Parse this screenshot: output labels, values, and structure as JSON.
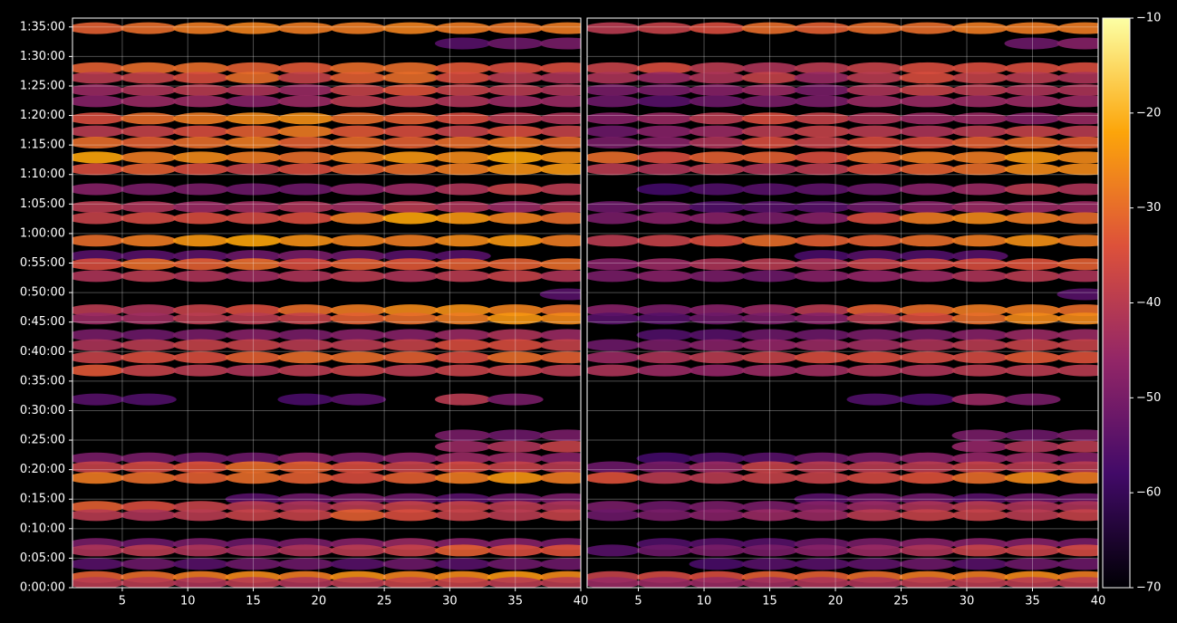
{
  "chart_data": {
    "type": "heatmap",
    "grid": true,
    "y": [
      94.8,
      92.2,
      88,
      86.4,
      84.3,
      82.4,
      79.5,
      77.3,
      75.4,
      72.9,
      70.9,
      67.5,
      64.5,
      62.6,
      58.8,
      56.2,
      54.8,
      52.8,
      49.7,
      47,
      45.6,
      42.8,
      41.1,
      39,
      36.8,
      31.9,
      25.8,
      23.9,
      21.9,
      20.4,
      18.6,
      15,
      13.7,
      12.3,
      7.4,
      6.3,
      4,
      1.8,
      0.8
    ],
    "ylim": [
      0,
      96.5
    ],
    "yticks": [
      {
        "value": 0,
        "label": "0:00:00"
      },
      {
        "value": 5,
        "label": "0:05:00"
      },
      {
        "value": 10,
        "label": "0:10:00"
      },
      {
        "value": 15,
        "label": "0:15:00"
      },
      {
        "value": 20,
        "label": "0:20:00"
      },
      {
        "value": 25,
        "label": "0:25:00"
      },
      {
        "value": 30,
        "label": "0:30:00"
      },
      {
        "value": 35,
        "label": "0:35:00"
      },
      {
        "value": 40,
        "label": "0:40:00"
      },
      {
        "value": 45,
        "label": "0:45:00"
      },
      {
        "value": 50,
        "label": "0:50:00"
      },
      {
        "value": 55,
        "label": "0:55:00"
      },
      {
        "value": 60,
        "label": "1:00:00"
      },
      {
        "value": 65,
        "label": "1:05:00"
      },
      {
        "value": 70,
        "label": "1:10:00"
      },
      {
        "value": 75,
        "label": "1:15:00"
      },
      {
        "value": 80,
        "label": "1:20:00"
      },
      {
        "value": 85,
        "label": "1:25:00"
      },
      {
        "value": 90,
        "label": "1:30:00"
      },
      {
        "value": 95,
        "label": "1:35:00"
      }
    ],
    "colorbar": {
      "lim": [
        -70,
        -10
      ],
      "colormap": [
        "#000004",
        "#420a68",
        "#932667",
        "#dd513a",
        "#fca50a",
        "#fcffa4"
      ],
      "ticks": [
        {
          "value": -70,
          "label": "−70"
        },
        {
          "value": -60,
          "label": "−60"
        },
        {
          "value": -50,
          "label": "−50"
        },
        {
          "value": -40,
          "label": "−40"
        },
        {
          "value": -30,
          "label": "−30"
        },
        {
          "value": -20,
          "label": "−20"
        },
        {
          "value": -10,
          "label": "−10"
        }
      ]
    },
    "panels": [
      {
        "x": [
          3,
          7,
          11,
          15,
          19,
          23,
          27,
          31,
          35,
          39
        ],
        "xlim": [
          1.2,
          40
        ],
        "xticks": [
          5,
          10,
          15,
          20,
          25,
          30,
          35,
          40
        ],
        "z": [
          [
            -32,
            -30,
            -28,
            -27,
            -28,
            -28,
            -27,
            -28,
            -29,
            -28
          ],
          [
            null,
            null,
            null,
            null,
            null,
            null,
            null,
            -55,
            -52,
            -50
          ],
          [
            -32,
            -30,
            -30,
            -32,
            -33,
            -30,
            -30,
            -33,
            -35,
            -35
          ],
          [
            -40,
            -38,
            -35,
            -30,
            -38,
            -32,
            -30,
            -35,
            -40,
            -42
          ],
          [
            -45,
            -42,
            -40,
            -42,
            -45,
            -38,
            -34,
            -38,
            -40,
            -42
          ],
          [
            -48,
            -45,
            -45,
            -48,
            -45,
            -40,
            -40,
            -42,
            -45,
            -45
          ],
          [
            -35,
            -30,
            -28,
            -26,
            -25,
            -30,
            -32,
            -35,
            -40,
            -42
          ],
          [
            -40,
            -38,
            -35,
            -32,
            -28,
            -33,
            -35,
            -38,
            -35,
            -38
          ],
          [
            -30,
            -32,
            -30,
            -28,
            -32,
            -30,
            -32,
            -30,
            -28,
            -30
          ],
          [
            -22,
            -28,
            -26,
            -28,
            -30,
            -27,
            -24,
            -26,
            -22,
            -25
          ],
          [
            -35,
            -32,
            -35,
            -38,
            -35,
            -32,
            -30,
            -28,
            -25,
            -24
          ],
          [
            -48,
            -50,
            -50,
            -52,
            -52,
            -48,
            -45,
            -42,
            -38,
            -40
          ],
          [
            -40,
            -42,
            -45,
            -44,
            -42,
            -44,
            -40,
            -42,
            -45,
            -42
          ],
          [
            -38,
            -36,
            -35,
            -36,
            -35,
            -28,
            -22,
            -24,
            -27,
            -30
          ],
          [
            -30,
            -28,
            -24,
            -22,
            -25,
            -27,
            -28,
            -26,
            -24,
            -28
          ],
          [
            -55,
            -55,
            -54,
            -52,
            -50,
            -52,
            -55,
            -55,
            null,
            null
          ],
          [
            -35,
            -30,
            -32,
            -30,
            -35,
            -32,
            -33,
            -32,
            -32,
            -30
          ],
          [
            -42,
            -40,
            -42,
            -44,
            -42,
            -40,
            -42,
            -40,
            -38,
            -42
          ],
          [
            null,
            null,
            null,
            null,
            null,
            null,
            null,
            null,
            null,
            -55
          ],
          [
            -40,
            -42,
            -38,
            -35,
            -30,
            -28,
            -26,
            -25,
            -27,
            -30
          ],
          [
            -45,
            -44,
            -40,
            -40,
            -38,
            -32,
            -30,
            -28,
            -24,
            -26
          ],
          [
            -50,
            -52,
            -50,
            -48,
            -50,
            -48,
            -48,
            -45,
            -42,
            -45
          ],
          [
            -42,
            -40,
            -38,
            -38,
            -40,
            -40,
            -38,
            -35,
            -35,
            -38
          ],
          [
            -38,
            -35,
            -35,
            -32,
            -30,
            -30,
            -32,
            -35,
            -30,
            -32
          ],
          [
            -33,
            -38,
            -40,
            -42,
            -40,
            -38,
            -40,
            -38,
            -38,
            -40
          ],
          [
            -55,
            -56,
            null,
            null,
            -57,
            -55,
            null,
            -40,
            -50,
            null
          ],
          [
            null,
            null,
            null,
            null,
            null,
            null,
            null,
            -50,
            -52,
            -50
          ],
          [
            null,
            null,
            null,
            null,
            null,
            null,
            null,
            -45,
            -42,
            -38
          ],
          [
            -50,
            -50,
            -52,
            -52,
            -48,
            -50,
            -48,
            -45,
            -45,
            -48
          ],
          [
            -38,
            -36,
            -34,
            -30,
            -32,
            -35,
            -38,
            -36,
            -38,
            -40
          ],
          [
            -28,
            -30,
            -32,
            -30,
            -32,
            -35,
            -32,
            -28,
            -24,
            -28
          ],
          [
            null,
            null,
            null,
            -55,
            -52,
            -50,
            -52,
            -55,
            -52,
            -50
          ],
          [
            -32,
            -35,
            -38,
            -40,
            -42,
            -40,
            -38,
            -38,
            -40,
            -42
          ],
          [
            -40,
            -42,
            -40,
            -38,
            -38,
            -32,
            -35,
            -38,
            -40,
            -38
          ],
          [
            -50,
            -52,
            -50,
            -52,
            -50,
            -48,
            -45,
            -48,
            -48,
            -50
          ],
          [
            -42,
            -40,
            -42,
            -44,
            -42,
            -40,
            -38,
            -32,
            -35,
            -34
          ],
          [
            -55,
            -52,
            -55,
            -52,
            -52,
            -55,
            -52,
            -55,
            -52,
            -52
          ],
          [
            -32,
            -30,
            -28,
            -26,
            -28,
            -25,
            -27,
            -26,
            -24,
            -26
          ],
          [
            -40,
            -40,
            -42,
            -40,
            -42,
            -40,
            -38,
            -38,
            -40,
            -40
          ]
        ]
      },
      {
        "x": [
          3,
          7,
          11,
          15,
          19,
          23,
          27,
          31,
          35,
          39
        ],
        "xlim": [
          1.1,
          40
        ],
        "xticks": [
          5,
          10,
          15,
          20,
          25,
          30,
          35,
          40
        ],
        "z": [
          [
            -40,
            -38,
            -35,
            -30,
            -32,
            -30,
            -30,
            -28,
            -28,
            -28
          ],
          [
            null,
            null,
            null,
            null,
            null,
            null,
            null,
            null,
            -52,
            -48
          ],
          [
            -38,
            -35,
            -40,
            -42,
            -40,
            -38,
            -35,
            -35,
            -35,
            -35
          ],
          [
            -42,
            -45,
            -42,
            -38,
            -45,
            -40,
            -35,
            -38,
            -40,
            -42
          ],
          [
            -50,
            -50,
            -48,
            -45,
            -50,
            -42,
            -38,
            -40,
            -42,
            -42
          ],
          [
            -52,
            -55,
            -52,
            -50,
            -50,
            -45,
            -45,
            -45,
            -45,
            -45
          ],
          [
            -48,
            -45,
            -40,
            -35,
            -38,
            -42,
            -45,
            -45,
            -48,
            -45
          ],
          [
            -52,
            -48,
            -45,
            -40,
            -38,
            -40,
            -42,
            -40,
            -38,
            -40
          ],
          [
            -50,
            -48,
            -42,
            -35,
            -38,
            -35,
            -35,
            -32,
            -30,
            -32
          ],
          [
            -30,
            -35,
            -32,
            -32,
            -35,
            -30,
            -28,
            -28,
            -24,
            -26
          ],
          [
            -40,
            -42,
            -40,
            -42,
            -40,
            -35,
            -32,
            -30,
            -26,
            -26
          ],
          [
            null,
            -58,
            -56,
            -55,
            -54,
            -52,
            -48,
            -45,
            -40,
            -42
          ],
          [
            -52,
            -52,
            -56,
            -55,
            -55,
            -52,
            -48,
            -45,
            -45,
            -45
          ],
          [
            -50,
            -48,
            -48,
            -50,
            -48,
            -35,
            -28,
            -26,
            -28,
            -30
          ],
          [
            -40,
            -38,
            -35,
            -30,
            -32,
            -32,
            -30,
            -28,
            -25,
            -28
          ],
          [
            null,
            null,
            null,
            null,
            -57,
            -55,
            -56,
            -55,
            null,
            null
          ],
          [
            -48,
            -45,
            -42,
            -40,
            -42,
            -38,
            -36,
            -35,
            -34,
            -32
          ],
          [
            -50,
            -48,
            -50,
            -52,
            -48,
            -46,
            -45,
            -42,
            -40,
            -42
          ],
          [
            null,
            null,
            null,
            null,
            null,
            null,
            null,
            null,
            null,
            -55
          ],
          [
            -48,
            -50,
            -48,
            -45,
            -40,
            -32,
            -30,
            -28,
            -28,
            -30
          ],
          [
            -55,
            -55,
            -52,
            -50,
            -48,
            -40,
            -35,
            -30,
            -26,
            -26
          ],
          [
            null,
            -56,
            -55,
            -52,
            -52,
            -50,
            -50,
            -48,
            -45,
            -45
          ],
          [
            -52,
            -50,
            -48,
            -46,
            -45,
            -44,
            -42,
            -40,
            -38,
            -38
          ],
          [
            -45,
            -42,
            -40,
            -38,
            -35,
            -35,
            -36,
            -36,
            -33,
            -34
          ],
          [
            -42,
            -45,
            -46,
            -45,
            -44,
            -42,
            -42,
            -40,
            -40,
            -40
          ],
          [
            null,
            null,
            null,
            null,
            null,
            -56,
            -57,
            -45,
            -50,
            null
          ],
          [
            null,
            null,
            null,
            null,
            null,
            null,
            null,
            -50,
            -52,
            -50
          ],
          [
            null,
            null,
            null,
            null,
            null,
            null,
            null,
            -46,
            -42,
            -40
          ],
          [
            null,
            -58,
            -56,
            -55,
            -52,
            -50,
            -48,
            -46,
            -45,
            -48
          ],
          [
            -52,
            -50,
            -45,
            -38,
            -40,
            -40,
            -40,
            -38,
            -40,
            -40
          ],
          [
            -34,
            -40,
            -40,
            -38,
            -38,
            -36,
            -34,
            -30,
            -26,
            -28
          ],
          [
            null,
            null,
            null,
            null,
            -55,
            -52,
            -52,
            -55,
            -52,
            -52
          ],
          [
            -50,
            -52,
            -50,
            -50,
            -48,
            -45,
            -42,
            -40,
            -42,
            -42
          ],
          [
            -52,
            -50,
            -48,
            -45,
            -45,
            -40,
            -38,
            -38,
            -40,
            -38
          ],
          [
            null,
            -56,
            -55,
            -55,
            -52,
            -50,
            -48,
            -48,
            -48,
            -50
          ],
          [
            -55,
            -52,
            -50,
            -50,
            -48,
            -45,
            -42,
            -38,
            -38,
            -36
          ],
          [
            null,
            null,
            -57,
            -55,
            -55,
            -54,
            -52,
            -55,
            -52,
            -52
          ],
          [
            -38,
            -36,
            -35,
            -32,
            -32,
            -30,
            -28,
            -28,
            -26,
            -28
          ],
          [
            -45,
            -45,
            -45,
            -44,
            -42,
            -42,
            -40,
            -40,
            -40,
            -40
          ]
        ]
      }
    ]
  }
}
